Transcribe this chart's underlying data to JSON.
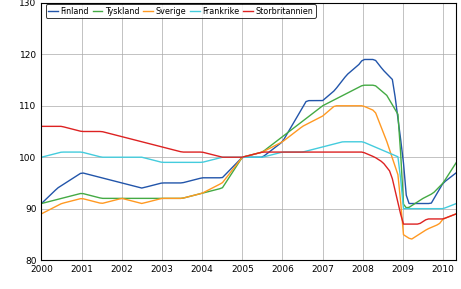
{
  "xlim": [
    2000,
    2010.33
  ],
  "ylim": [
    80,
    130
  ],
  "yticks": [
    80,
    90,
    100,
    110,
    120,
    130
  ],
  "xticks": [
    2000,
    2001,
    2002,
    2003,
    2004,
    2005,
    2006,
    2007,
    2008,
    2009,
    2010
  ],
  "xtick_labels": [
    "2000",
    "2001",
    "2002",
    "2003",
    "2004",
    "2005",
    "2006",
    "2007",
    "2008",
    "2009",
    "2010"
  ],
  "legend_labels": [
    "Finland",
    "Tyskland",
    "Sverige",
    "Frankrike",
    "Storbritannien"
  ],
  "colors": {
    "Finland": "#2255aa",
    "Tyskland": "#44aa44",
    "Sverige": "#ff9922",
    "Frankrike": "#44ccdd",
    "Storbritannien": "#dd2222"
  }
}
